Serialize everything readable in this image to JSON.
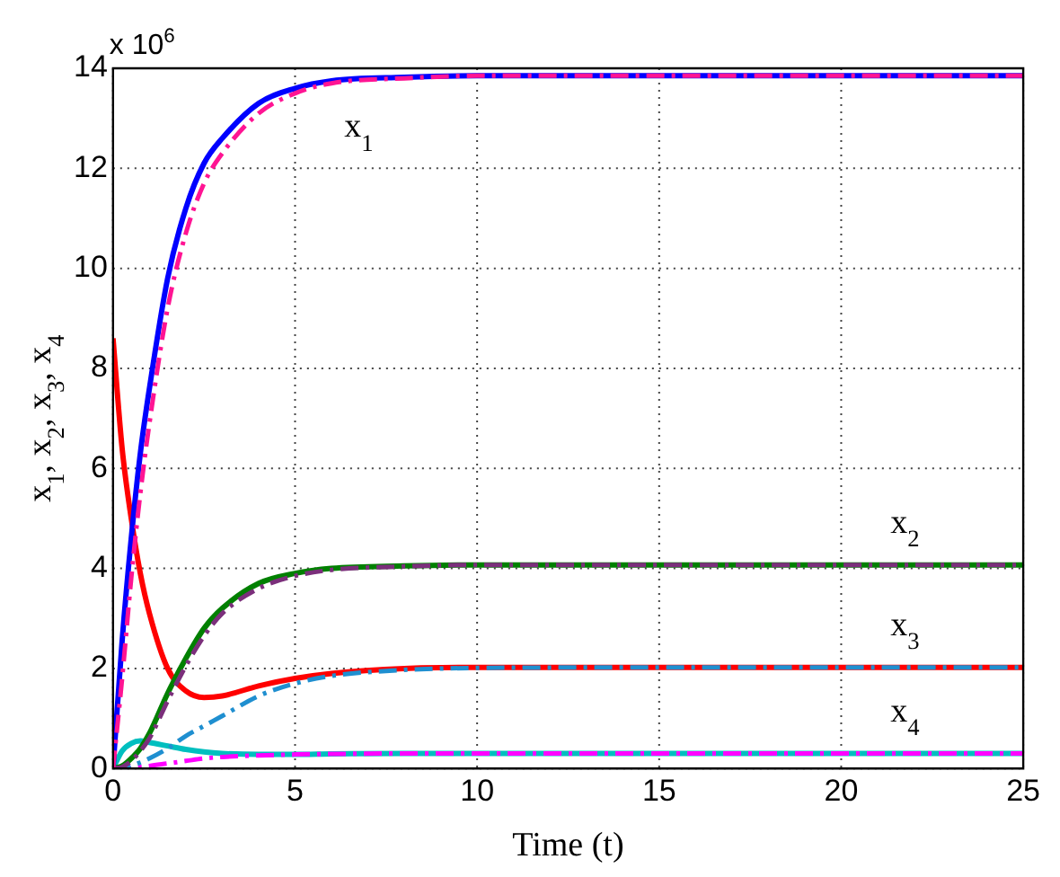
{
  "chart_data": {
    "type": "line",
    "xlabel": "Time (t)",
    "ylabel": "x$_{1}$, x$_{2}$, x$_{3}$, x$_{4}$",
    "x": [
      0,
      0.25,
      0.5,
      0.75,
      1,
      1.5,
      2,
      2.5,
      3,
      4,
      5,
      6,
      8,
      10,
      15,
      20,
      25
    ],
    "series": [
      {
        "color": "#ff1493",
        "line_style": "dashed",
        "values": [
          0,
          1.8,
          3.8,
          5.5,
          6.9,
          9.2,
          10.7,
          11.7,
          12.3,
          13.1,
          13.5,
          13.7,
          13.8,
          13.85,
          13.85,
          13.85,
          13.85
        ]
      },
      {
        "color": "#7b2f7b",
        "line_style": "dashed",
        "values": [
          0,
          0.03,
          0.15,
          0.35,
          0.6,
          1.35,
          2.05,
          2.65,
          3.1,
          3.6,
          3.85,
          3.97,
          4.04,
          4.07,
          4.07,
          4.07,
          4.07
        ]
      },
      {
        "color": "#1f8fd0",
        "line_style": "dashed",
        "values": [
          0,
          0,
          0.05,
          0.12,
          0.2,
          0.4,
          0.65,
          0.85,
          1.05,
          1.45,
          1.7,
          1.85,
          1.97,
          2.01,
          2.02,
          2.02,
          2.02
        ]
      },
      {
        "color": "#ff00ff",
        "line_style": "dashed",
        "values": [
          0,
          0,
          0.01,
          0.03,
          0.05,
          0.1,
          0.15,
          0.2,
          0.23,
          0.26,
          0.28,
          0.29,
          0.3,
          0.3,
          0.3,
          0.3,
          0.3
        ]
      },
      {
        "name": "x$_{1}$",
        "color": "#0000ff",
        "line_style": "solid",
        "values": [
          0,
          2.55,
          4.6,
          6.3,
          7.6,
          9.8,
          11.2,
          12.1,
          12.6,
          13.3,
          13.6,
          13.75,
          13.82,
          13.85,
          13.85,
          13.85,
          13.85
        ]
      },
      {
        "name": "x$_{2}$",
        "color": "#008000",
        "line_style": "solid",
        "values": [
          0,
          0.05,
          0.2,
          0.4,
          0.7,
          1.5,
          2.2,
          2.8,
          3.2,
          3.7,
          3.9,
          4.0,
          4.05,
          4.07,
          4.07,
          4.07,
          4.07
        ]
      },
      {
        "name": "x$_{3}$",
        "color": "#ff0000",
        "line_style": "solid",
        "values": [
          8.6,
          6.4,
          5.0,
          3.9,
          3.1,
          2.0,
          1.55,
          1.42,
          1.45,
          1.65,
          1.8,
          1.9,
          2.0,
          2.02,
          2.02,
          2.02,
          2.02
        ]
      },
      {
        "name": "x$_{4}$",
        "color": "#00bfbf",
        "line_style": "solid",
        "values": [
          0,
          0.35,
          0.5,
          0.55,
          0.52,
          0.45,
          0.38,
          0.33,
          0.3,
          0.28,
          0.28,
          0.29,
          0.3,
          0.3,
          0.3,
          0.3,
          0.3
        ]
      }
    ],
    "xlim": [
      0,
      25
    ],
    "xticks": [
      0,
      5,
      10,
      15,
      20,
      25
    ],
    "ylim": [
      0,
      14
    ],
    "yticks": [
      0,
      2,
      4,
      6,
      8,
      10,
      12,
      14
    ],
    "grid": true,
    "legend": false,
    "annotations": [
      "x 10$^{6}$"
    ]
  }
}
